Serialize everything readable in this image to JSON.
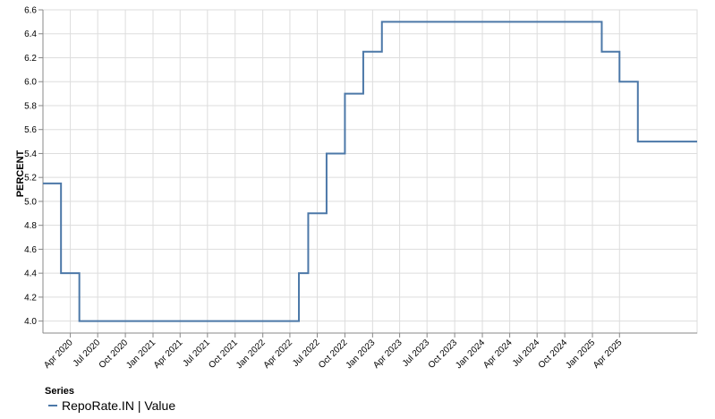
{
  "chart_data": {
    "type": "line",
    "title": "",
    "xlabel": "",
    "ylabel": "PERCENT",
    "ylim": [
      3.9,
      6.6
    ],
    "xlim": [
      "2020-01-01",
      "2025-12-15"
    ],
    "grid": true,
    "y_ticks": [
      "4.0",
      "4.2",
      "4.4",
      "4.6",
      "4.8",
      "5.0",
      "5.2",
      "5.4",
      "5.6",
      "5.8",
      "6.0",
      "6.2",
      "6.4",
      "6.6"
    ],
    "x_ticks": [
      {
        "date": "2020-04-01",
        "label": "Apr 2020"
      },
      {
        "date": "2020-07-01",
        "label": "Jul 2020"
      },
      {
        "date": "2020-10-01",
        "label": "Oct 2020"
      },
      {
        "date": "2021-01-01",
        "label": "Jan 2021"
      },
      {
        "date": "2021-04-01",
        "label": "Apr 2021"
      },
      {
        "date": "2021-07-01",
        "label": "Jul 2021"
      },
      {
        "date": "2021-10-01",
        "label": "Oct 2021"
      },
      {
        "date": "2022-01-01",
        "label": "Jan 2022"
      },
      {
        "date": "2022-04-01",
        "label": "Apr 2022"
      },
      {
        "date": "2022-07-01",
        "label": "Jul 2022"
      },
      {
        "date": "2022-10-01",
        "label": "Oct 2022"
      },
      {
        "date": "2023-01-01",
        "label": "Jan 2023"
      },
      {
        "date": "2023-04-01",
        "label": "Apr 2023"
      },
      {
        "date": "2023-07-01",
        "label": "Jul 2023"
      },
      {
        "date": "2023-10-01",
        "label": "Oct 2023"
      },
      {
        "date": "2024-01-01",
        "label": "Jan 2024"
      },
      {
        "date": "2024-04-01",
        "label": "Apr 2024"
      },
      {
        "date": "2024-07-01",
        "label": "Jul 2024"
      },
      {
        "date": "2024-10-01",
        "label": "Oct 2024"
      },
      {
        "date": "2025-01-01",
        "label": "Jan 2025"
      },
      {
        "date": "2025-04-01",
        "label": "Apr 2025"
      }
    ],
    "legend": {
      "title": "Series",
      "placement": "bottom-left"
    },
    "series": [
      {
        "name": "RepoRate.IN | Value",
        "color": "#4c78a8",
        "step": "after",
        "points": [
          {
            "x": "2020-01-01",
            "y": 5.15
          },
          {
            "x": "2020-03-01",
            "y": 4.4
          },
          {
            "x": "2020-05-01",
            "y": 4.0
          },
          {
            "x": "2022-05-01",
            "y": 4.4
          },
          {
            "x": "2022-06-01",
            "y": 4.9
          },
          {
            "x": "2022-08-01",
            "y": 5.4
          },
          {
            "x": "2022-10-01",
            "y": 5.9
          },
          {
            "x": "2022-12-01",
            "y": 6.25
          },
          {
            "x": "2023-02-01",
            "y": 6.5
          },
          {
            "x": "2025-02-01",
            "y": 6.25
          },
          {
            "x": "2025-04-01",
            "y": 6.0
          },
          {
            "x": "2025-06-01",
            "y": 5.5
          },
          {
            "x": "2025-12-15",
            "y": 5.5
          }
        ]
      }
    ]
  }
}
